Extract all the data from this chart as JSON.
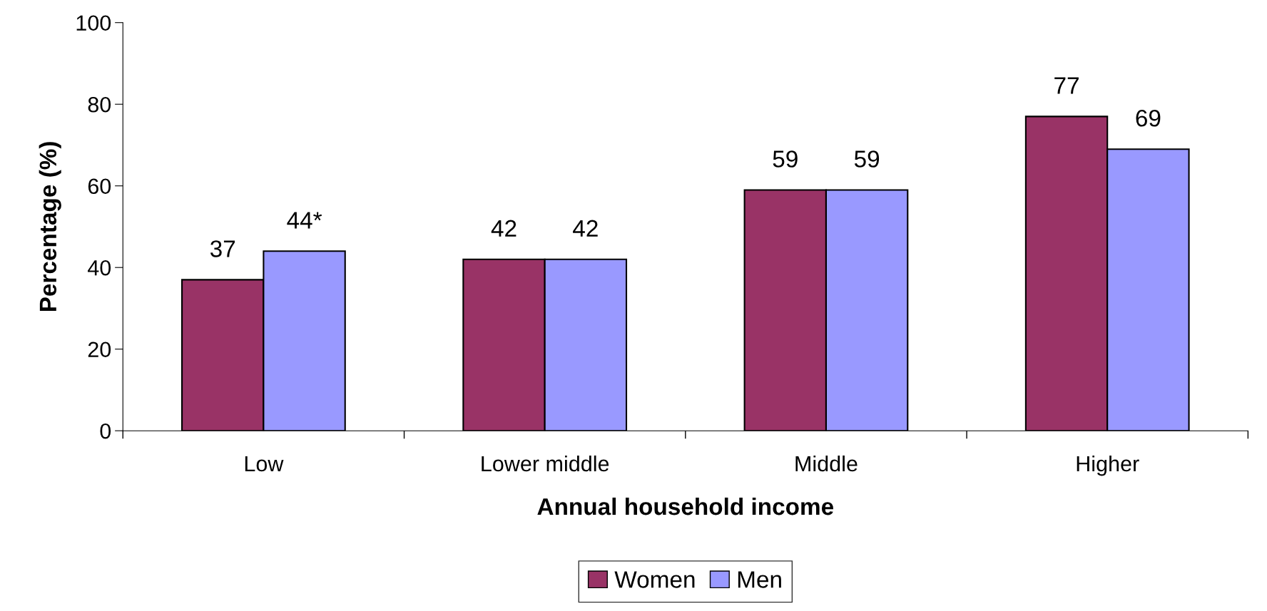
{
  "chart_data": {
    "type": "bar",
    "xlabel": "Annual household income",
    "ylabel": "Percentage (%)",
    "categories": [
      "Low",
      "Lower middle",
      "Middle",
      "Higher"
    ],
    "series": [
      {
        "name": "Women",
        "color": "#993366",
        "values": [
          37,
          42,
          59,
          77
        ],
        "value_labels": [
          "37",
          "42",
          "59",
          "77"
        ]
      },
      {
        "name": "Men",
        "color": "#9999ff",
        "values": [
          44,
          42,
          59,
          69
        ],
        "value_labels": [
          "44*",
          "42",
          "59",
          "69"
        ]
      }
    ],
    "ylim": [
      0,
      100
    ],
    "yticks": [
      0,
      20,
      40,
      60,
      80,
      100
    ],
    "grid": false,
    "legend": "bottom"
  }
}
